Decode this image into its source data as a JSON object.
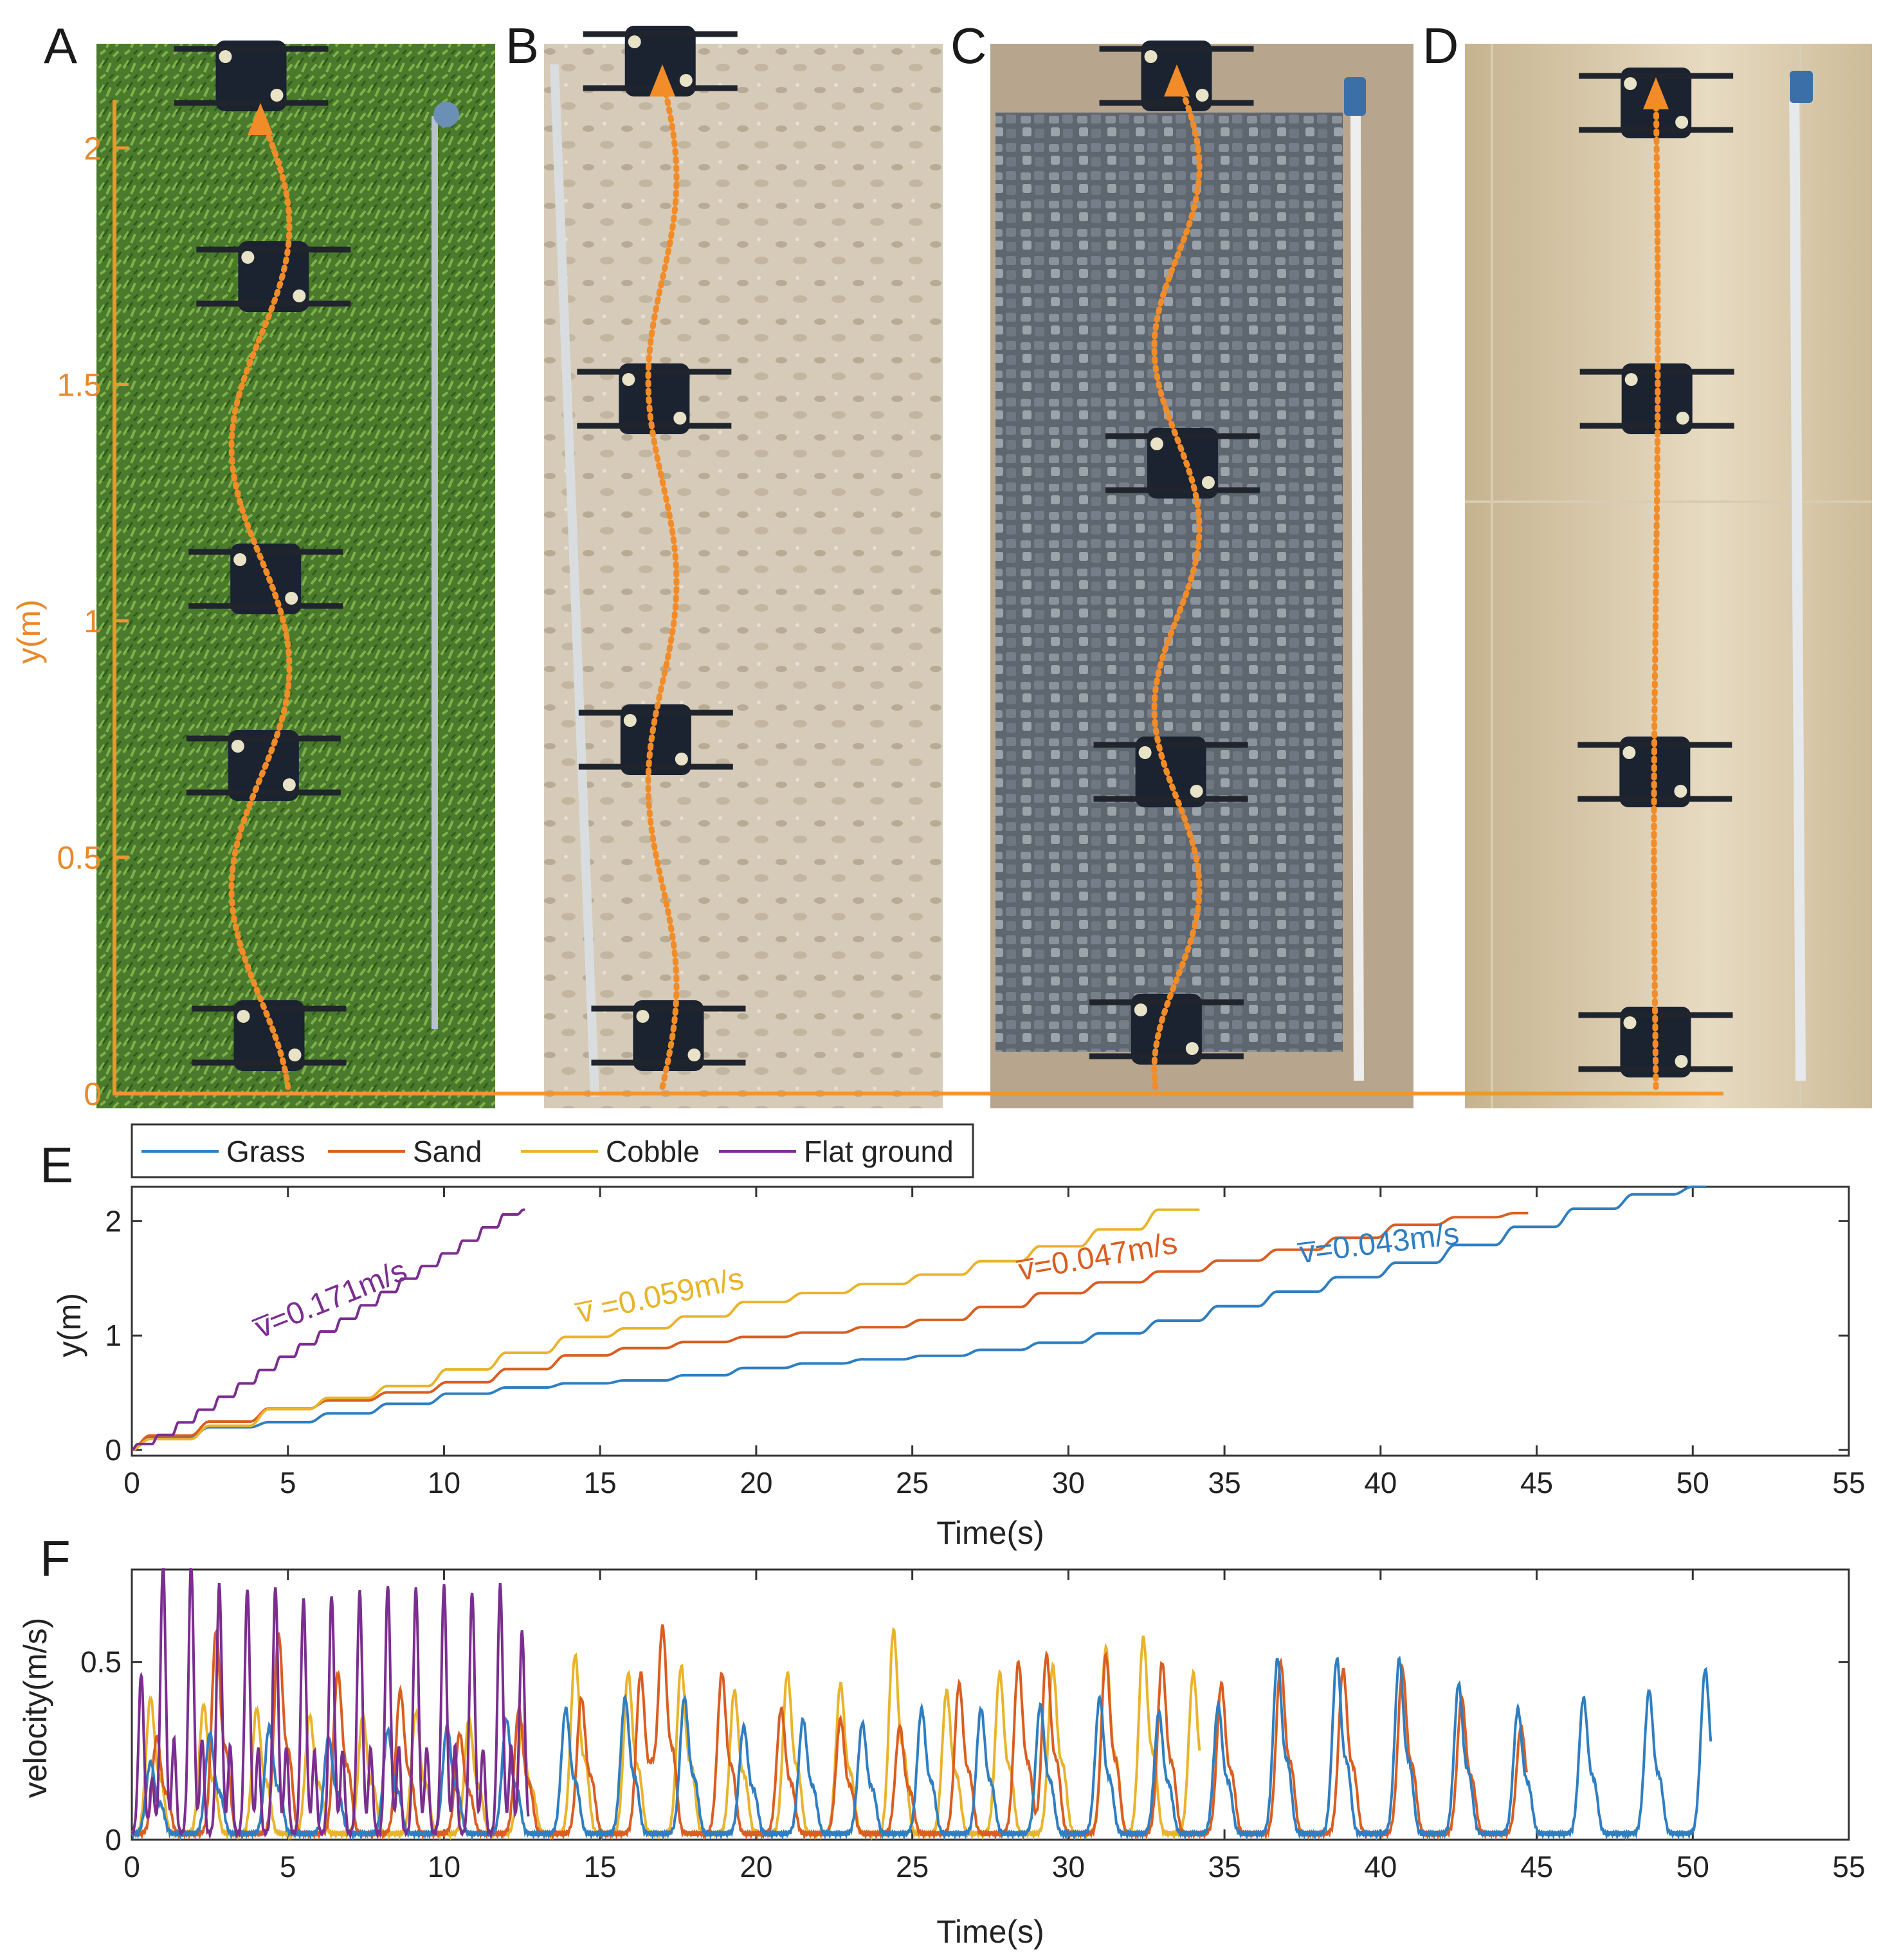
{
  "panel_labels": [
    "A",
    "B",
    "C",
    "D",
    "E",
    "F"
  ],
  "photos": {
    "axis_label": "y(m)",
    "ticks": [
      "0",
      "0.5",
      "1",
      "1.5",
      "2"
    ],
    "surfaces": [
      "Grass",
      "Sand",
      "Cobble",
      "Flat ground"
    ]
  },
  "colors": {
    "grass": "#2f7ec1",
    "sand": "#d95e21",
    "cobble": "#e9b42b",
    "flat": "#7b2e8f",
    "trajectory": "#f28c28"
  },
  "chart_data": [
    {
      "panel": "E",
      "type": "line",
      "xlabel": "Time(s)",
      "ylabel": "y(m)",
      "xlim": [
        0,
        55
      ],
      "ylim": [
        -0.05,
        2.3
      ],
      "xticks": [
        "0",
        "5",
        "10",
        "15",
        "20",
        "25",
        "30",
        "35",
        "40",
        "45",
        "50",
        "55"
      ],
      "yticks": [
        "0",
        "1",
        "2"
      ],
      "legend": [
        "Grass",
        "Sand",
        "Cobble",
        "Flat ground"
      ],
      "series": [
        {
          "name": "Grass",
          "period": 1.9,
          "x": [
            0,
            3,
            6,
            9,
            12,
            15,
            18,
            21,
            24,
            27,
            30,
            33,
            36,
            39,
            42,
            45,
            48,
            50.5
          ],
          "y": [
            0,
            0.18,
            0.25,
            0.38,
            0.52,
            0.58,
            0.62,
            0.72,
            0.78,
            0.83,
            0.92,
            1.05,
            1.25,
            1.45,
            1.65,
            1.9,
            2.15,
            2.3
          ]
        },
        {
          "name": "Sand",
          "period": 1.9,
          "x": [
            0,
            3,
            6,
            9,
            12,
            15,
            18,
            21,
            24,
            27,
            30,
            33,
            36,
            39,
            42,
            44.8
          ],
          "y": [
            0,
            0.2,
            0.38,
            0.48,
            0.62,
            0.82,
            0.92,
            0.99,
            1.05,
            1.15,
            1.35,
            1.5,
            1.65,
            1.8,
            1.98,
            2.07
          ]
        },
        {
          "name": "Cobble",
          "period": 1.9,
          "x": [
            0,
            3,
            6,
            9,
            12,
            15,
            18,
            21,
            24,
            27,
            30,
            32,
            34.2
          ],
          "y": [
            0,
            0.15,
            0.38,
            0.52,
            0.75,
            0.98,
            1.1,
            1.3,
            1.42,
            1.55,
            1.75,
            1.9,
            2.1
          ]
        },
        {
          "name": "Flat ground",
          "period": 0.65,
          "x": [
            0,
            1,
            2,
            3,
            4,
            5,
            6,
            7,
            8,
            9,
            10,
            11,
            12,
            12.6
          ],
          "y": [
            0,
            0.08,
            0.25,
            0.42,
            0.6,
            0.78,
            0.95,
            1.12,
            1.3,
            1.48,
            1.65,
            1.82,
            2.0,
            2.1
          ]
        }
      ],
      "annotations": [
        {
          "text": "v̅=0.171m/s",
          "series": "Flat ground"
        },
        {
          "text": "v̅ =0.059m/s",
          "series": "Cobble"
        },
        {
          "text": "v̅=0.047m/s",
          "series": "Sand"
        },
        {
          "text": "v̅=0.043m/s",
          "series": "Grass"
        }
      ]
    },
    {
      "panel": "F",
      "type": "line",
      "xlabel": "Time(s)",
      "ylabel": "velocity(m/s)",
      "xlim": [
        0,
        55
      ],
      "ylim": [
        0,
        0.76
      ],
      "xticks": [
        "0",
        "5",
        "10",
        "15",
        "20",
        "25",
        "30",
        "35",
        "40",
        "45",
        "50",
        "55"
      ],
      "yticks": [
        "0",
        "0.5"
      ],
      "series": [
        {
          "name": "Grass",
          "peak_times": [
            0.6,
            2.5,
            4.4,
            6.3,
            8.2,
            10.1,
            12.0,
            13.9,
            15.8,
            17.7,
            19.6,
            21.5,
            23.4,
            25.3,
            27.2,
            29.1,
            31.0,
            32.9,
            34.8,
            36.7,
            38.6,
            40.6,
            42.5,
            44.4,
            46.5,
            48.6,
            50.4
          ],
          "peak_values": [
            0.2,
            0.28,
            0.3,
            0.27,
            0.29,
            0.3,
            0.32,
            0.35,
            0.38,
            0.38,
            0.3,
            0.32,
            0.31,
            0.35,
            0.35,
            0.36,
            0.38,
            0.34,
            0.36,
            0.49,
            0.49,
            0.49,
            0.42,
            0.35,
            0.38,
            0.4,
            0.46
          ]
        },
        {
          "name": "Sand",
          "peak_times": [
            0.8,
            2.7,
            4.7,
            6.6,
            8.6,
            10.5,
            12.4,
            14.4,
            16.3,
            17.0,
            18.9,
            20.8,
            22.7,
            24.6,
            26.5,
            28.4,
            29.3,
            31.2,
            33.0,
            34.9,
            36.8,
            38.8,
            40.7,
            42.6,
            44.5
          ],
          "peak_values": [
            0.27,
            0.57,
            0.56,
            0.45,
            0.4,
            0.28,
            0.35,
            0.38,
            0.45,
            0.58,
            0.45,
            0.35,
            0.32,
            0.3,
            0.42,
            0.48,
            0.5,
            0.5,
            0.48,
            0.42,
            0.48,
            0.46,
            0.46,
            0.38,
            0.3
          ]
        },
        {
          "name": "Cobble",
          "peak_times": [
            0.6,
            2.3,
            4.0,
            5.7,
            7.4,
            9.1,
            10.8,
            12.5,
            14.2,
            15.9,
            17.6,
            19.3,
            21.0,
            22.7,
            24.4,
            26.1,
            27.8,
            29.5,
            31.2,
            32.4,
            34.0
          ],
          "peak_values": [
            0.38,
            0.36,
            0.35,
            0.33,
            0.33,
            0.34,
            0.32,
            0.3,
            0.5,
            0.45,
            0.47,
            0.4,
            0.45,
            0.42,
            0.57,
            0.4,
            0.45,
            0.47,
            0.52,
            0.55,
            0.45
          ]
        },
        {
          "name": "Flat ground",
          "peak_times": [
            0.3,
            1.0,
            1.9,
            2.8,
            3.7,
            4.6,
            5.5,
            6.4,
            7.3,
            8.2,
            9.1,
            10.0,
            10.9,
            11.8,
            12.5
          ],
          "peak_values": [
            0.45,
            0.76,
            0.76,
            0.7,
            0.69,
            0.69,
            0.66,
            0.67,
            0.68,
            0.7,
            0.69,
            0.7,
            0.68,
            0.7,
            0.57
          ]
        }
      ]
    }
  ]
}
